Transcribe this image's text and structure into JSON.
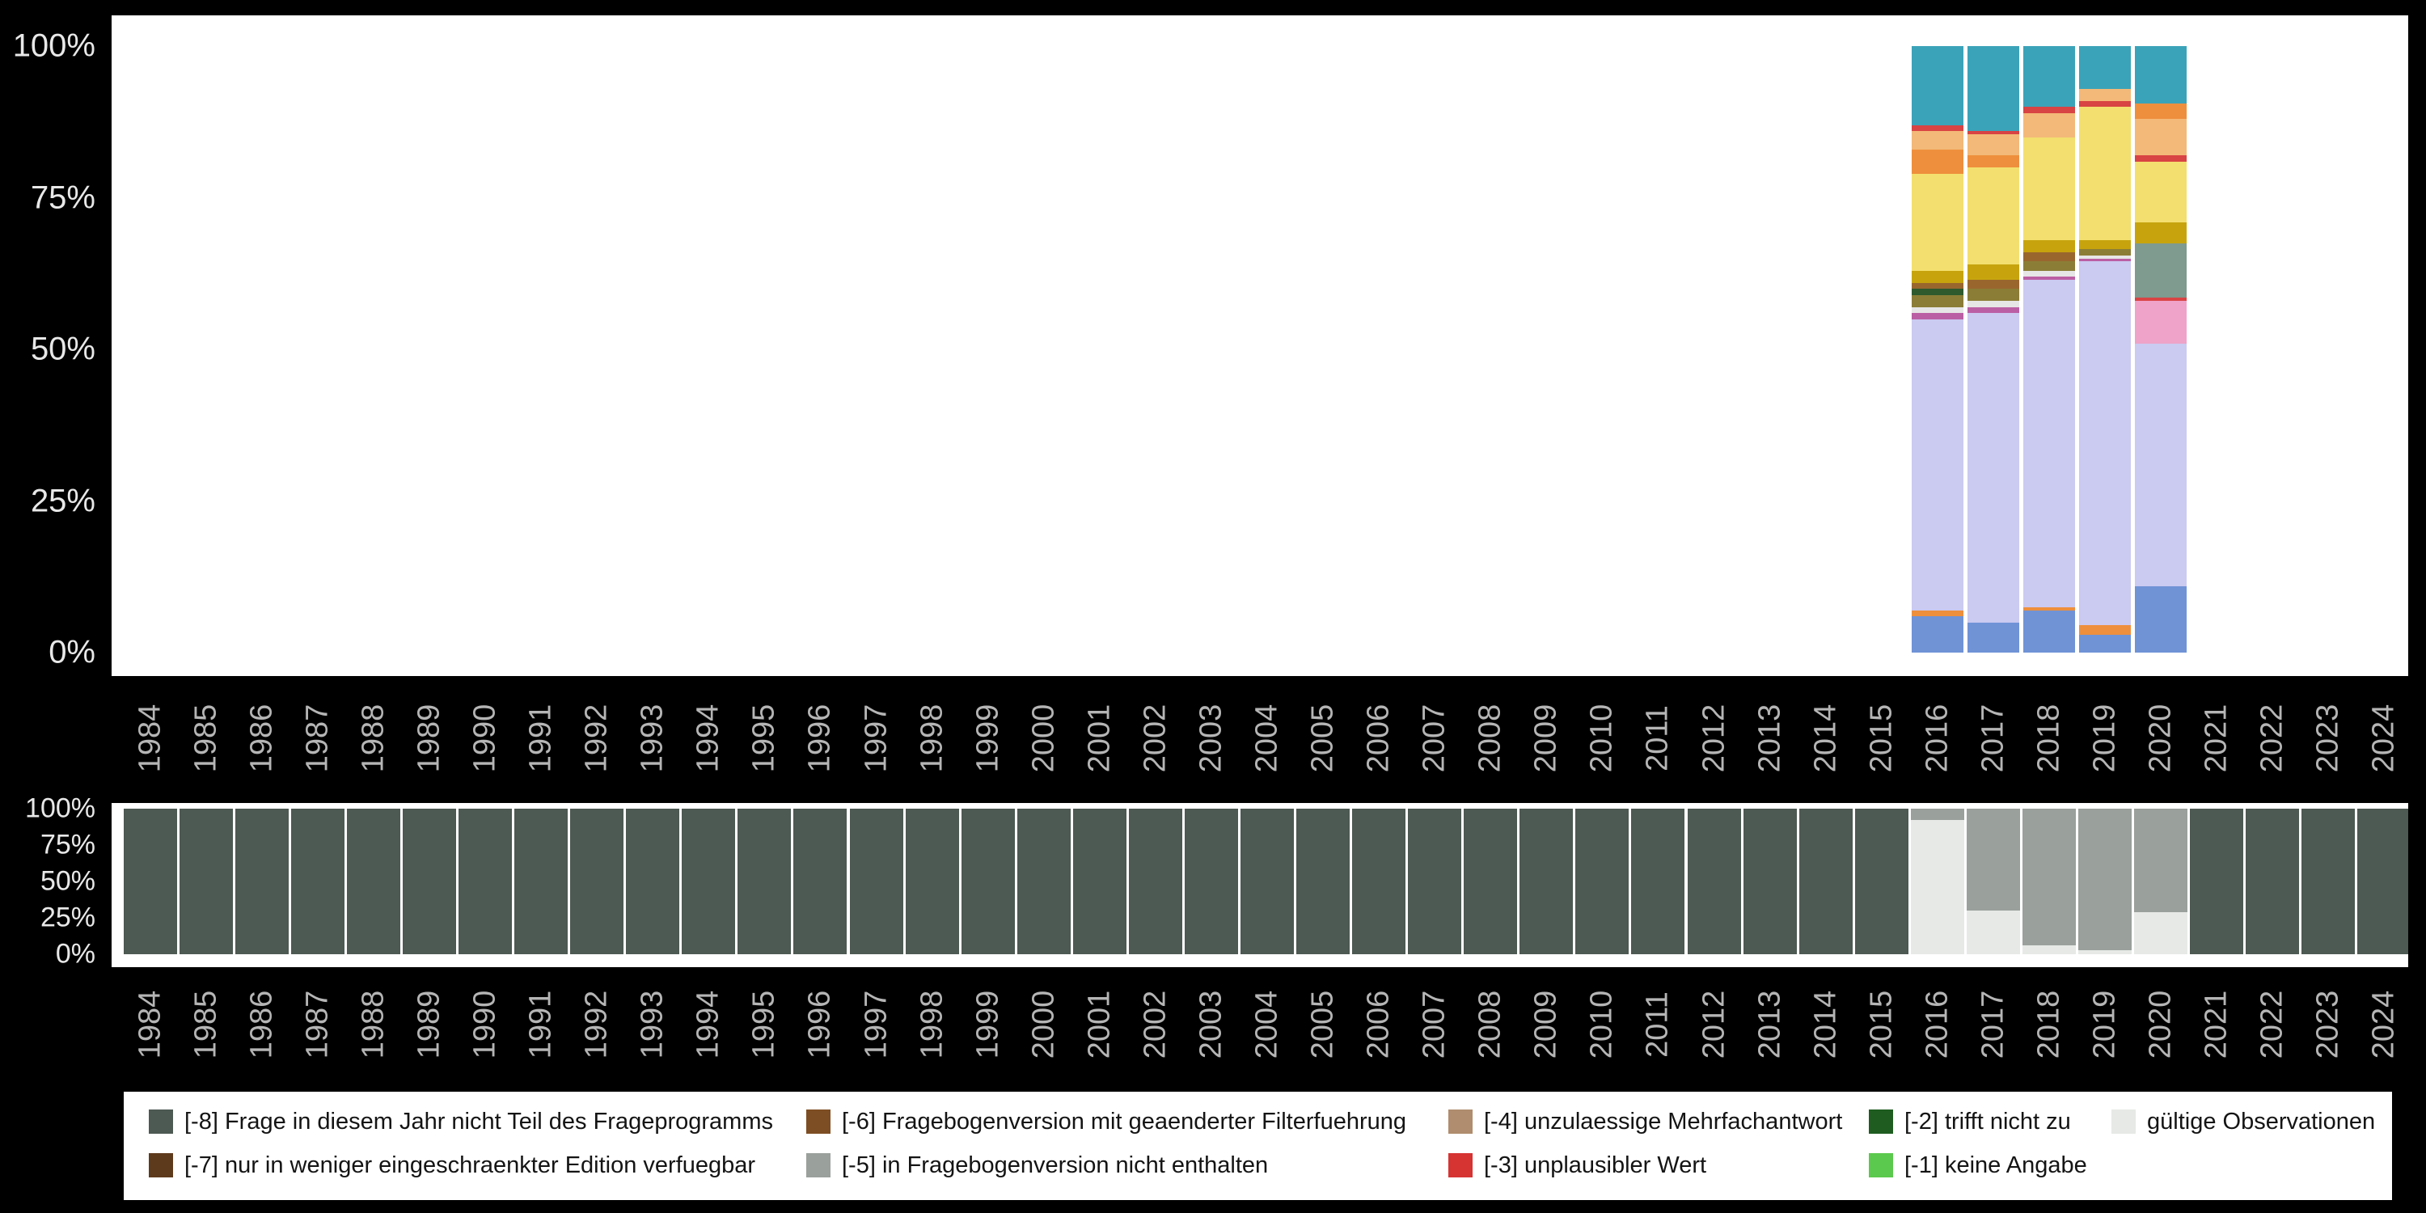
{
  "background_color": "#000000",
  "chart_data": [
    {
      "id": "answer-distribution-panel",
      "type": "bar",
      "subtype": "stacked_percent",
      "title": "",
      "xlabel": "",
      "ylabel": "",
      "x_categories": [
        "1984",
        "1985",
        "1986",
        "1987",
        "1988",
        "1989",
        "1990",
        "1991",
        "1992",
        "1993",
        "1994",
        "1995",
        "1996",
        "1997",
        "1998",
        "1999",
        "2000",
        "2001",
        "2002",
        "2003",
        "2004",
        "2005",
        "2006",
        "2007",
        "2008",
        "2009",
        "2010",
        "2011",
        "2012",
        "2013",
        "2014",
        "2015",
        "2016",
        "2017",
        "2018",
        "2019",
        "2020",
        "2021",
        "2022",
        "2023",
        "2024"
      ],
      "ytick_labels": [
        "100%",
        "75%",
        "50%",
        "25%",
        "0%"
      ],
      "ylim": [
        0,
        100
      ],
      "grid": false,
      "legend_position": "none",
      "colors": {
        "blue": "#7093d6",
        "orange": "#ee8f3d",
        "peach": "#f3b978",
        "lavender": "#cbcaf1",
        "magenta": "#bb5fa4",
        "pink": "#efa3c8",
        "graygreen": "#7f9a8e",
        "olive": "#8b7d36",
        "darkgreen": "#2e5a2e",
        "brown": "#99662e",
        "gold": "#c7a40e",
        "yellow": "#f3df6f",
        "red": "#d84343",
        "teal": "#3ba3b9",
        "lightgray": "#e6e6e6"
      },
      "bars": [
        {
          "year": "2016",
          "segments": [
            [
              "blue",
              6
            ],
            [
              "orange",
              1
            ],
            [
              "lavender",
              48
            ],
            [
              "magenta",
              1
            ],
            [
              "lightgray",
              1
            ],
            [
              "olive",
              2
            ],
            [
              "darkgreen",
              1
            ],
            [
              "brown",
              1
            ],
            [
              "gold",
              2
            ],
            [
              "yellow",
              16
            ],
            [
              "orange",
              4
            ],
            [
              "peach",
              3
            ],
            [
              "red",
              1
            ],
            [
              "teal",
              13
            ]
          ]
        },
        {
          "year": "2017",
          "segments": [
            [
              "blue",
              5
            ],
            [
              "lavender",
              51
            ],
            [
              "magenta",
              1
            ],
            [
              "lightgray",
              1
            ],
            [
              "olive",
              2
            ],
            [
              "brown",
              1.5
            ],
            [
              "gold",
              2.5
            ],
            [
              "yellow",
              16
            ],
            [
              "orange",
              2
            ],
            [
              "peach",
              3.5
            ],
            [
              "red",
              0.5
            ],
            [
              "teal",
              14
            ]
          ]
        },
        {
          "year": "2018",
          "segments": [
            [
              "blue",
              7
            ],
            [
              "orange",
              0.5
            ],
            [
              "lavender",
              54
            ],
            [
              "magenta",
              0.5
            ],
            [
              "lightgray",
              1
            ],
            [
              "olive",
              1.5
            ],
            [
              "brown",
              1.5
            ],
            [
              "gold",
              2
            ],
            [
              "yellow",
              17
            ],
            [
              "peach",
              4
            ],
            [
              "red",
              1
            ],
            [
              "teal",
              10
            ]
          ]
        },
        {
          "year": "2019",
          "segments": [
            [
              "blue",
              3
            ],
            [
              "orange",
              1.5
            ],
            [
              "lavender",
              60
            ],
            [
              "magenta",
              0.5
            ],
            [
              "lightgray",
              0.5
            ],
            [
              "olive",
              1
            ],
            [
              "gold",
              1.5
            ],
            [
              "yellow",
              22
            ],
            [
              "red",
              1
            ],
            [
              "peach",
              2
            ],
            [
              "teal",
              7
            ]
          ]
        },
        {
          "year": "2020",
          "segments": [
            [
              "blue",
              11
            ],
            [
              "lavender",
              40
            ],
            [
              "pink",
              7
            ],
            [
              "red",
              0.5
            ],
            [
              "graygreen",
              9
            ],
            [
              "gold",
              3.5
            ],
            [
              "yellow",
              10
            ],
            [
              "red",
              1
            ],
            [
              "peach",
              6
            ],
            [
              "orange",
              2.5
            ],
            [
              "teal",
              9.5
            ]
          ]
        }
      ]
    },
    {
      "id": "missing-codes-panel",
      "type": "bar",
      "subtype": "stacked_percent",
      "title": "",
      "xlabel": "",
      "ylabel": "",
      "x_categories": [
        "1984",
        "1985",
        "1986",
        "1987",
        "1988",
        "1989",
        "1990",
        "1991",
        "1992",
        "1993",
        "1994",
        "1995",
        "1996",
        "1997",
        "1998",
        "1999",
        "2000",
        "2001",
        "2002",
        "2003",
        "2004",
        "2005",
        "2006",
        "2007",
        "2008",
        "2009",
        "2010",
        "2011",
        "2012",
        "2013",
        "2014",
        "2015",
        "2016",
        "2017",
        "2018",
        "2019",
        "2020",
        "2021",
        "2022",
        "2023",
        "2024"
      ],
      "ytick_labels": [
        "100%",
        "75%",
        "50%",
        "25%",
        "0%"
      ],
      "ylim": [
        0,
        100
      ],
      "grid": false,
      "legend_position": "bottom",
      "colors": {
        "-8": "#4d5953",
        "-5": "#9aa09c",
        "valid": "#e6e9e6"
      },
      "bars": [
        {
          "year": "1984",
          "segments": [
            [
              "-8",
              100
            ]
          ]
        },
        {
          "year": "1985",
          "segments": [
            [
              "-8",
              100
            ]
          ]
        },
        {
          "year": "1986",
          "segments": [
            [
              "-8",
              100
            ]
          ]
        },
        {
          "year": "1987",
          "segments": [
            [
              "-8",
              100
            ]
          ]
        },
        {
          "year": "1988",
          "segments": [
            [
              "-8",
              100
            ]
          ]
        },
        {
          "year": "1989",
          "segments": [
            [
              "-8",
              100
            ]
          ]
        },
        {
          "year": "1990",
          "segments": [
            [
              "-8",
              100
            ]
          ]
        },
        {
          "year": "1991",
          "segments": [
            [
              "-8",
              100
            ]
          ]
        },
        {
          "year": "1992",
          "segments": [
            [
              "-8",
              100
            ]
          ]
        },
        {
          "year": "1993",
          "segments": [
            [
              "-8",
              100
            ]
          ]
        },
        {
          "year": "1994",
          "segments": [
            [
              "-8",
              100
            ]
          ]
        },
        {
          "year": "1995",
          "segments": [
            [
              "-8",
              100
            ]
          ]
        },
        {
          "year": "1996",
          "segments": [
            [
              "-8",
              100
            ]
          ]
        },
        {
          "year": "1997",
          "segments": [
            [
              "-8",
              100
            ]
          ]
        },
        {
          "year": "1998",
          "segments": [
            [
              "-8",
              100
            ]
          ]
        },
        {
          "year": "1999",
          "segments": [
            [
              "-8",
              100
            ]
          ]
        },
        {
          "year": "2000",
          "segments": [
            [
              "-8",
              100
            ]
          ]
        },
        {
          "year": "2001",
          "segments": [
            [
              "-8",
              100
            ]
          ]
        },
        {
          "year": "2002",
          "segments": [
            [
              "-8",
              100
            ]
          ]
        },
        {
          "year": "2003",
          "segments": [
            [
              "-8",
              100
            ]
          ]
        },
        {
          "year": "2004",
          "segments": [
            [
              "-8",
              100
            ]
          ]
        },
        {
          "year": "2005",
          "segments": [
            [
              "-8",
              100
            ]
          ]
        },
        {
          "year": "2006",
          "segments": [
            [
              "-8",
              100
            ]
          ]
        },
        {
          "year": "2007",
          "segments": [
            [
              "-8",
              100
            ]
          ]
        },
        {
          "year": "2008",
          "segments": [
            [
              "-8",
              100
            ]
          ]
        },
        {
          "year": "2009",
          "segments": [
            [
              "-8",
              100
            ]
          ]
        },
        {
          "year": "2010",
          "segments": [
            [
              "-8",
              100
            ]
          ]
        },
        {
          "year": "2011",
          "segments": [
            [
              "-8",
              100
            ]
          ]
        },
        {
          "year": "2012",
          "segments": [
            [
              "-8",
              100
            ]
          ]
        },
        {
          "year": "2013",
          "segments": [
            [
              "-8",
              100
            ]
          ]
        },
        {
          "year": "2014",
          "segments": [
            [
              "-8",
              100
            ]
          ]
        },
        {
          "year": "2015",
          "segments": [
            [
              "-8",
              100
            ]
          ]
        },
        {
          "year": "2016",
          "segments": [
            [
              "valid",
              92
            ],
            [
              "-5",
              8
            ]
          ]
        },
        {
          "year": "2017",
          "segments": [
            [
              "valid",
              30
            ],
            [
              "-5",
              70
            ]
          ]
        },
        {
          "year": "2018",
          "segments": [
            [
              "valid",
              6
            ],
            [
              "-5",
              94
            ]
          ]
        },
        {
          "year": "2019",
          "segments": [
            [
              "valid",
              3
            ],
            [
              "-5",
              97
            ]
          ]
        },
        {
          "year": "2020",
          "segments": [
            [
              "valid",
              29
            ],
            [
              "-5",
              71
            ]
          ]
        },
        {
          "year": "2021",
          "segments": [
            [
              "-8",
              100
            ]
          ]
        },
        {
          "year": "2022",
          "segments": [
            [
              "-8",
              100
            ]
          ]
        },
        {
          "year": "2023",
          "segments": [
            [
              "-8",
              100
            ]
          ]
        },
        {
          "year": "2024",
          "segments": [
            [
              "-8",
              100
            ]
          ]
        }
      ]
    }
  ],
  "legend": {
    "items": [
      {
        "label": "[-8] Frage in diesem Jahr nicht Teil des Frageprogramms",
        "color": "#4d5953",
        "row": 0,
        "col": 0
      },
      {
        "label": "[-7] nur in weniger eingeschraenkter Edition verfuegbar",
        "color": "#5e3a1c",
        "row": 1,
        "col": 0
      },
      {
        "label": "[-6] Fragebogenversion mit geaenderter Filterfuehrung",
        "color": "#7d4e24",
        "row": 0,
        "col": 1
      },
      {
        "label": "[-5] in Fragebogenversion nicht enthalten",
        "color": "#9aa09c",
        "row": 1,
        "col": 1
      },
      {
        "label": "[-4] unzulaessige Mehrfachantwort",
        "color": "#b08d6e",
        "row": 0,
        "col": 2
      },
      {
        "label": "[-3] unplausibler Wert",
        "color": "#d63333",
        "row": 1,
        "col": 2
      },
      {
        "label": "[-2] trifft nicht zu",
        "color": "#1e5c20",
        "row": 0,
        "col": 3
      },
      {
        "label": "[-1] keine Angabe",
        "color": "#5bc94d",
        "row": 1,
        "col": 3
      },
      {
        "label": "gültige Observationen",
        "color": "#e6e9e6",
        "row": 0,
        "col": 4
      }
    ]
  }
}
